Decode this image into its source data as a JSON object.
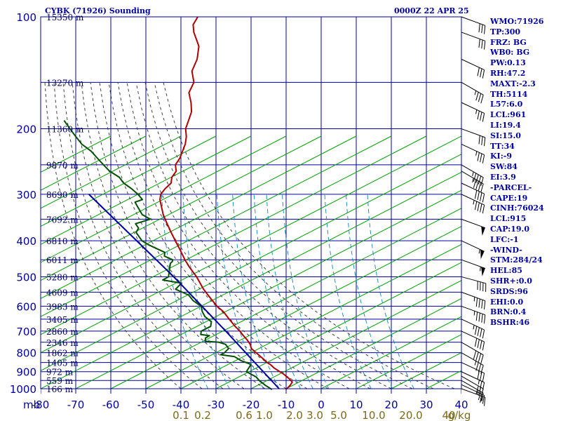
{
  "header": {
    "title": "CYBK (71926) Sounding",
    "datetime": "0000Z 22 APR 25"
  },
  "indices": [
    "WMO:71926",
    "TP:300",
    "FRZ: BG",
    "WB0: BG",
    "PW:0.13",
    "RH:47.2",
    "MAXT:-2.3",
    "TH:5114",
    "L57:6.0",
    "LCL:961",
    "LI:19.4",
    "SI:15.0",
    "TT:34",
    "KI:-9",
    "SW:84",
    "EI:3.9",
    "-PARCEL-",
    "CAPE:19",
    "CINH:76024",
    "LCL:915",
    "CAP:19.0",
    "LFC:-1",
    "-WIND-",
    "STM:284/24",
    "HEL:85",
    "SHR+:0.0",
    "SRDS:96",
    "EHI:0.0",
    "BRN:0.4",
    "BSHR:46"
  ],
  "colors": {
    "frame": "#0000a0",
    "dry_adiabat": "#00a000",
    "moist_adiabat": "#404040",
    "mixing_ratio": "#2090c0",
    "temperature": "#b00000",
    "dewpoint": "#005000",
    "parcel": "#0000a0",
    "wind_barb": "#000000"
  },
  "chart_data": {
    "type": "skew-t log-p sounding",
    "x_axis": {
      "unit_label": "mb",
      "temperature_ticks": [
        -80,
        -70,
        -60,
        -50,
        -40,
        -30,
        -20,
        -10,
        0,
        10,
        20,
        30,
        40
      ],
      "temperature_tick_labels": [
        "-80",
        "-70",
        "-60",
        "-50",
        "-40",
        "-30",
        "-20",
        "-10",
        "0",
        "10",
        "20",
        "30",
        "40"
      ]
    },
    "y_axis": {
      "pressure_ticks": [
        100,
        200,
        300,
        400,
        500,
        600,
        700,
        800,
        900,
        1000
      ],
      "pressure_tick_labels": [
        "100",
        "200",
        "300",
        "400",
        "500",
        "600",
        "700",
        "800",
        "900",
        "1000"
      ],
      "range": [
        1000,
        100
      ],
      "scale": "log"
    },
    "mixing_ratio_labels": [
      "0.1",
      "0.2",
      "0.6",
      "1.0",
      "2.0",
      "3.0",
      "5.0",
      "10.0",
      "20.0",
      "40",
      "g/kg"
    ],
    "height_labels": [
      {
        "pressure": 100,
        "text": "15350 m"
      },
      {
        "pressure": 150,
        "text": "13270 m"
      },
      {
        "pressure": 200,
        "text": "11360 m"
      },
      {
        "pressure": 250,
        "text": "9870 m"
      },
      {
        "pressure": 300,
        "text": "8690 m"
      },
      {
        "pressure": 350,
        "text": "7692 m"
      },
      {
        "pressure": 400,
        "text": "6810 m"
      },
      {
        "pressure": 450,
        "text": "6011 m"
      },
      {
        "pressure": 500,
        "text": "5280 m"
      },
      {
        "pressure": 550,
        "text": "4609 m"
      },
      {
        "pressure": 600,
        "text": "3983 m"
      },
      {
        "pressure": 650,
        "text": "3405 m"
      },
      {
        "pressure": 700,
        "text": "2860 m"
      },
      {
        "pressure": 750,
        "text": "2346 m"
      },
      {
        "pressure": 800,
        "text": "1862 m"
      },
      {
        "pressure": 850,
        "text": "1405 m"
      },
      {
        "pressure": 900,
        "text": "972 m"
      },
      {
        "pressure": 950,
        "text": "559 m"
      },
      {
        "pressure": 1000,
        "text": "166 m"
      }
    ],
    "series": [
      {
        "pressure": [
          1005,
          980,
          960,
          940,
          925,
          910,
          900,
          880,
          860,
          850,
          830,
          800,
          780,
          760,
          740,
          720,
          700,
          680,
          650,
          620,
          600,
          560,
          540,
          500,
          470,
          450,
          420,
          400,
          380,
          360,
          340,
          320,
          310,
          300,
          290,
          280,
          270,
          260,
          250,
          240,
          230,
          220,
          210,
          200,
          190,
          180,
          170,
          160,
          150,
          140,
          130,
          120,
          110,
          105,
          100
        ],
        "value": [
          -10,
          -9,
          -8.5,
          -9.5,
          -10.5,
          -11.5,
          -12.5,
          -14.2,
          -15.5,
          -16.5,
          -17.8,
          -20,
          -21.5,
          -22,
          -23,
          -24.3,
          -25.5,
          -27,
          -29,
          -31,
          -33,
          -36,
          -37.5,
          -40,
          -42.5,
          -44,
          -46,
          -47.5,
          -49,
          -50.5,
          -52,
          -53,
          -53.5,
          -53.5,
          -52.5,
          -51,
          -51,
          -50,
          -50.5,
          -49.5,
          -49,
          -48.5,
          -48.5,
          -49,
          -48.5,
          -48,
          -48.5,
          -49.5,
          -48.5,
          -49.5,
          -48.5,
          -48.5,
          -50.5,
          -51,
          -50
        ]
      },
      {
        "pressure": [
          1005,
          980,
          950,
          930,
          910,
          900,
          880,
          860,
          850,
          840,
          820,
          810,
          800,
          780,
          760,
          750,
          745,
          730,
          720,
          715,
          700,
          680,
          660,
          640,
          620,
          600,
          580,
          560,
          540,
          520,
          510,
          500,
          490,
          480,
          470,
          460,
          455,
          450,
          440,
          430,
          420,
          410,
          400,
          380,
          370,
          360,
          350,
          340,
          330,
          320,
          315,
          310,
          300,
          290,
          280,
          270,
          260,
          250,
          240,
          230,
          220,
          210,
          200,
          190
        ],
        "value": [
          -14,
          -16,
          -18,
          -19,
          -21,
          -22,
          -21.5,
          -21,
          -22.5,
          -24,
          -26,
          -30,
          -29,
          -28,
          -29,
          -31,
          -35,
          -35,
          -34,
          -36.5,
          -36.5,
          -34,
          -34,
          -36,
          -37,
          -37.5,
          -40,
          -41.5,
          -45.5,
          -44,
          -49.5,
          -48,
          -48,
          -48,
          -48,
          -48,
          -47.5,
          -47.5,
          -50,
          -50,
          -52.5,
          -55,
          -57,
          -59,
          -58.5,
          -59.5,
          -55.5,
          -58,
          -59,
          -60,
          -60.5,
          -58.5,
          -60,
          -62,
          -64.5,
          -66,
          -69,
          -71,
          -73,
          -75,
          -78,
          -80,
          -82,
          -84
        ]
      },
      {
        "pressure": [
          1000,
          850,
          700,
          500,
          400,
          300
        ],
        "value": [
          -12,
          -20,
          -29.5,
          -46.5,
          -58.5,
          -74
        ]
      }
    ],
    "wind_barbs": [
      {
        "pressure": 1000,
        "dir": 290,
        "spd": 15
      },
      {
        "pressure": 975,
        "dir": 295,
        "spd": 20
      },
      {
        "pressure": 950,
        "dir": 300,
        "spd": 25
      },
      {
        "pressure": 925,
        "dir": 300,
        "spd": 30
      },
      {
        "pressure": 900,
        "dir": 295,
        "spd": 25
      },
      {
        "pressure": 850,
        "dir": 295,
        "spd": 30
      },
      {
        "pressure": 800,
        "dir": 300,
        "spd": 35
      },
      {
        "pressure": 750,
        "dir": 300,
        "spd": 40
      },
      {
        "pressure": 700,
        "dir": 295,
        "spd": 40
      },
      {
        "pressure": 650,
        "dir": 295,
        "spd": 45
      },
      {
        "pressure": 600,
        "dir": 290,
        "spd": 45
      },
      {
        "pressure": 550,
        "dir": 290,
        "spd": 45
      },
      {
        "pressure": 500,
        "dir": 285,
        "spd": 40
      },
      {
        "pressure": 450,
        "dir": 290,
        "spd": 55
      },
      {
        "pressure": 400,
        "dir": 295,
        "spd": 55
      },
      {
        "pressure": 350,
        "dir": 290,
        "spd": 50
      },
      {
        "pressure": 300,
        "dir": 295,
        "spd": 45
      },
      {
        "pressure": 280,
        "dir": 295,
        "spd": 40
      },
      {
        "pressure": 260,
        "dir": 300,
        "spd": 45
      },
      {
        "pressure": 250,
        "dir": 300,
        "spd": 45
      },
      {
        "pressure": 220,
        "dir": 295,
        "spd": 35
      },
      {
        "pressure": 200,
        "dir": 290,
        "spd": 30
      },
      {
        "pressure": 170,
        "dir": 295,
        "spd": 35
      },
      {
        "pressure": 150,
        "dir": 300,
        "spd": 35
      },
      {
        "pressure": 130,
        "dir": 295,
        "spd": 30
      },
      {
        "pressure": 110,
        "dir": 290,
        "spd": 30
      },
      {
        "pressure": 100,
        "dir": 290,
        "spd": 30
      }
    ]
  }
}
